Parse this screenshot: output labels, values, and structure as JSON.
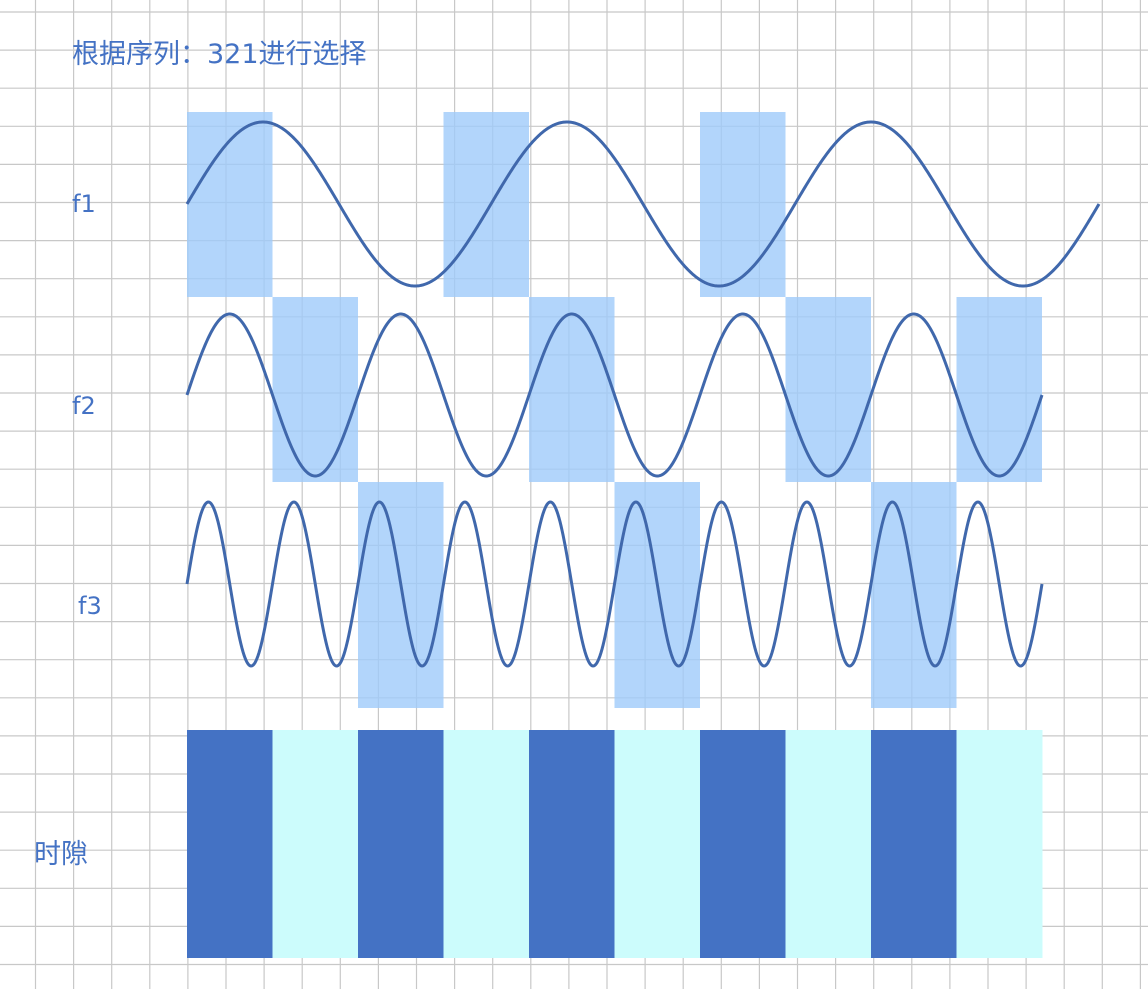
{
  "title": "根据序列：321进行选择",
  "rows": [
    {
      "label": "f1",
      "cycles": 3
    },
    {
      "label": "f2",
      "cycles": 5
    },
    {
      "label": "f3",
      "cycles": 10
    }
  ],
  "timeslot_label": "时隙",
  "selection_sequence": [
    3,
    2,
    1,
    3,
    2,
    1,
    3,
    2,
    1,
    2
  ],
  "timeslot_count": 10,
  "colors": {
    "grid": "#c8c8c8",
    "wave": "#4068ac",
    "highlight": "#9fcbfa",
    "slot_dark": "#4472c4",
    "slot_light": "#ccfcfc",
    "text": "#4472c4"
  }
}
